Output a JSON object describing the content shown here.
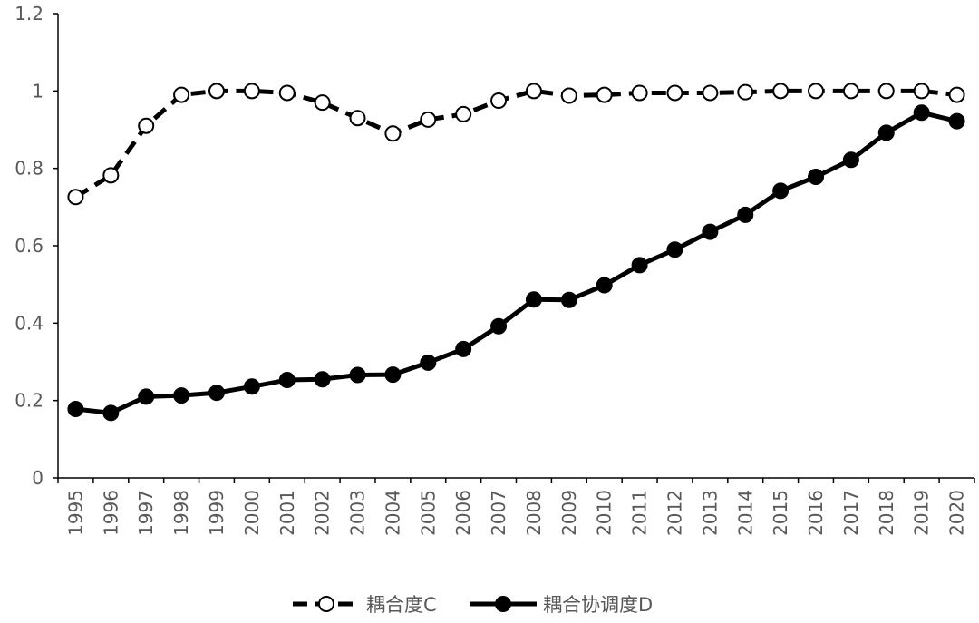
{
  "chart_data": {
    "type": "line",
    "title": "",
    "xlabel": "",
    "ylabel": "",
    "categories": [
      "1995",
      "1996",
      "1997",
      "1998",
      "1999",
      "2000",
      "2001",
      "2002",
      "2003",
      "2004",
      "2005",
      "2006",
      "2007",
      "2008",
      "2009",
      "2010",
      "2011",
      "2012",
      "2013",
      "2014",
      "2015",
      "2016",
      "2017",
      "2018",
      "2019",
      "2020"
    ],
    "ylim": [
      0,
      1.2
    ],
    "yticks": [
      "0",
      "0.2",
      "0.4",
      "0.6",
      "0.8",
      "1",
      "1.2"
    ],
    "grid": false,
    "legend_position": "bottom",
    "series": [
      {
        "name": "耦合度C",
        "style": "dashed",
        "marker": "open-circle",
        "color": "#000000",
        "values": [
          0.726,
          0.782,
          0.91,
          0.99,
          1.0,
          1.0,
          0.995,
          0.97,
          0.93,
          0.89,
          0.926,
          0.94,
          0.975,
          1.0,
          0.988,
          0.99,
          0.995,
          0.995,
          0.995,
          0.997,
          1.0,
          1.0,
          1.0,
          1.0,
          1.0,
          0.99
        ]
      },
      {
        "name": "耦合协调度D",
        "style": "solid",
        "marker": "filled-circle",
        "color": "#000000",
        "values": [
          0.178,
          0.168,
          0.21,
          0.213,
          0.22,
          0.236,
          0.253,
          0.255,
          0.266,
          0.267,
          0.298,
          0.333,
          0.392,
          0.461,
          0.46,
          0.498,
          0.55,
          0.59,
          0.636,
          0.68,
          0.742,
          0.778,
          0.822,
          0.892,
          0.944,
          0.922
        ]
      }
    ]
  }
}
